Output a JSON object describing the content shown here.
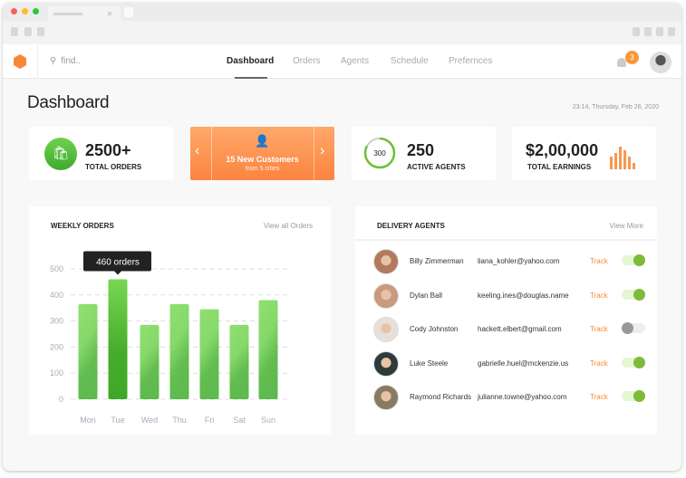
{
  "nav": {
    "search_placeholder": "find..",
    "items": [
      "Dashboard",
      "Orders",
      "Agents",
      "Schedule",
      "Prefernces"
    ],
    "active": 0,
    "notifications": "3"
  },
  "page": {
    "title": "Dashboard",
    "datetime": "23:14, Thursday, Feb 26, 2020"
  },
  "stats": {
    "orders": {
      "value": "2500+",
      "label": "TOTAL ORDERS"
    },
    "customers": {
      "title": "15 New Customers",
      "subtitle": "from 5 cities"
    },
    "agents": {
      "ring": "300",
      "value": "250",
      "label": "ACTIVE AGENTS",
      "ring_fraction": 0.83
    },
    "earnings": {
      "value": "$2,00,000",
      "label": "TOTAL EARNINGS"
    }
  },
  "colors": {
    "accent": "#f7883a",
    "green": "#5cc445",
    "toggle_on": "#7dbb3c"
  },
  "weekly": {
    "title": "WEEKLY ORDERS",
    "link": "View all Orders",
    "tooltip": "460 orders"
  },
  "chart_data": {
    "type": "bar",
    "categories": [
      "Mon",
      "Tue",
      "Wed",
      "Thu",
      "Fri",
      "Sat",
      "Sun"
    ],
    "values": [
      365,
      460,
      285,
      365,
      345,
      285,
      380
    ],
    "yticks": [
      0,
      100,
      200,
      300,
      400,
      500
    ],
    "ylim": [
      0,
      500
    ],
    "grid": true,
    "highlight": "Tue"
  },
  "agents": {
    "title": "DELIVERY AGENTS",
    "link": "View More",
    "track_label": "Track",
    "rows": [
      {
        "name": "Billy Zimmerman",
        "email": "liana_kohler@yahoo.com",
        "active": true
      },
      {
        "name": "Dylan Ball",
        "email": "keeling.ines@douglas.name",
        "active": true
      },
      {
        "name": "Cody Johnston",
        "email": "hackett.elbert@gmail.com",
        "active": false
      },
      {
        "name": "Luke Steele",
        "email": "gabrielle.huel@mckenzie.us",
        "active": true
      },
      {
        "name": "Raymond Richards",
        "email": "julianne.towne@yahoo.com",
        "active": true
      }
    ]
  }
}
